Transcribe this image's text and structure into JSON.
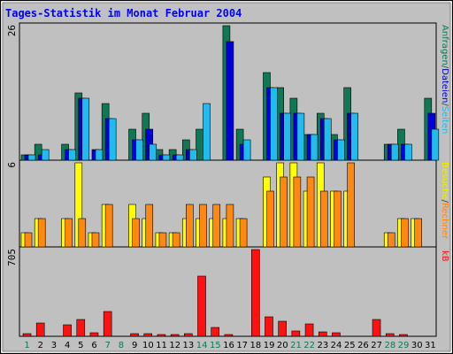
{
  "chart_data": {
    "type": "bar",
    "title": "Tages-Statistik im Monat Februar 2004",
    "days": [
      "1",
      "2",
      "3",
      "4",
      "5",
      "6",
      "7",
      "8",
      "9",
      "10",
      "11",
      "12",
      "13",
      "14",
      "15",
      "16",
      "17",
      "18",
      "19",
      "20",
      "21",
      "22",
      "23",
      "24",
      "25",
      "26",
      "27",
      "28",
      "29",
      "30",
      "31"
    ],
    "weekend_days": [
      "1",
      "7",
      "8",
      "14",
      "15",
      "21",
      "22",
      "28",
      "29"
    ],
    "panels": [
      {
        "name": "top",
        "max_label": "26",
        "ymax": 26,
        "series": [
          {
            "name": "Anfragen",
            "color": "#117755",
            "values": [
              1,
              3,
              0,
              3,
              13,
              0,
              11,
              0,
              6,
              9,
              2,
              2,
              4,
              6,
              0,
              26,
              6,
              0,
              17,
              14,
              12,
              5,
              9,
              5,
              14,
              0,
              0,
              3,
              6,
              0,
              12
            ]
          },
          {
            "name": "Dateien",
            "color": "#0000dd",
            "values": [
              1,
              1,
              0,
              2,
              12,
              2,
              8,
              0,
              4,
              6,
              1,
              1,
              2,
              0,
              0,
              23,
              3,
              0,
              14,
              9,
              9,
              5,
              8,
              4,
              9,
              0,
              0,
              3,
              3,
              0,
              9
            ]
          },
          {
            "name": "Seiten",
            "color": "#22bbee",
            "values": [
              1,
              2,
              0,
              2,
              12,
              2,
              8,
              0,
              4,
              3,
              1,
              1,
              2,
              11,
              0,
              0,
              4,
              0,
              14,
              9,
              9,
              5,
              8,
              4,
              9,
              0,
              0,
              3,
              3,
              0,
              6
            ]
          }
        ]
      },
      {
        "name": "middle",
        "max_label": "6",
        "ymax": 6,
        "series": [
          {
            "name": "Besuche",
            "color": "#ffff00",
            "values": [
              1,
              2,
              0,
              2,
              6,
              1,
              3,
              0,
              3,
              2,
              1,
              1,
              2,
              2,
              2,
              2,
              2,
              0,
              5,
              6,
              6,
              4,
              6,
              4,
              4,
              0,
              0,
              1,
              2,
              2,
              0
            ]
          },
          {
            "name": "Rechner",
            "color": "#ff8811",
            "values": [
              1,
              2,
              0,
              2,
              2,
              1,
              3,
              0,
              2,
              3,
              1,
              1,
              3,
              3,
              3,
              3,
              2,
              0,
              4,
              5,
              5,
              5,
              4,
              4,
              6,
              0,
              0,
              1,
              2,
              2,
              0
            ]
          }
        ]
      },
      {
        "name": "bottom",
        "max_label": "705",
        "ymax": 705,
        "series": [
          {
            "name": "kB",
            "color": "#ff1111",
            "values": [
              20,
              110,
              0,
              95,
              140,
              30,
              205,
              0,
              20,
              25,
              15,
              15,
              20,
              490,
              70,
              15,
              0,
              705,
              160,
              120,
              40,
              100,
              35,
              30,
              0,
              0,
              140,
              25,
              15,
              0,
              0
            ]
          }
        ]
      }
    ],
    "right_labels": {
      "top": [
        {
          "text": "Anfragen",
          "color": "#117755"
        },
        {
          "text": "/",
          "color": "#444444"
        },
        {
          "text": "Dateien",
          "color": "#0000dd"
        },
        {
          "text": "/",
          "color": "#444444"
        },
        {
          "text": "Seiten",
          "color": "#22bbee"
        }
      ],
      "middle": [
        {
          "text": "Besuche",
          "color": "#eeee00"
        },
        {
          "text": "/",
          "color": "#444444"
        },
        {
          "text": "Rechner",
          "color": "#ff8811"
        }
      ],
      "bottom": [
        {
          "text": "kB",
          "color": "#ff1111"
        }
      ]
    },
    "colors": {
      "title": "#0000ff",
      "weekday_label": "#000000",
      "weekend_label": "#117755",
      "plot_bg": "#c0c0c0"
    }
  }
}
